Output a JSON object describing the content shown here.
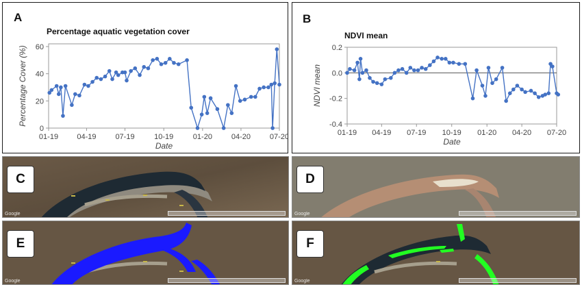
{
  "panels": {
    "a": {
      "label": "A",
      "title": "Percentage aquatic vegetation cover"
    },
    "b": {
      "label": "B",
      "title": "NDVI mean"
    },
    "c": {
      "label": "C"
    },
    "d": {
      "label": "D"
    },
    "e": {
      "label": "E"
    },
    "f": {
      "label": "F"
    }
  },
  "map_watermark": "Google",
  "colors": {
    "series": "#4472C4",
    "zero_line": "#555555",
    "water_mask": "#1a1aff",
    "veg_mask": "#22ff22"
  },
  "chart_data": [
    {
      "type": "line",
      "title": "Percentage aquatic vegetation cover",
      "xlabel": "Date",
      "ylabel": "Percentage Cover (%)",
      "x_ticks": [
        "01-19",
        "04-19",
        "07-19",
        "10-19",
        "01-20",
        "04-20",
        "07-20"
      ],
      "y_ticks": [
        "0",
        "20",
        "40",
        "60"
      ],
      "ylim": [
        0,
        62
      ],
      "grid": false,
      "series": [
        {
          "x": [
            "2019-01-03",
            "2019-01-08",
            "2019-01-20",
            "2019-01-25",
            "2019-01-30",
            "2019-02-04",
            "2019-02-10",
            "2019-02-25",
            "2019-03-05",
            "2019-03-15",
            "2019-03-27",
            "2019-04-05",
            "2019-04-15",
            "2019-04-25",
            "2019-05-05",
            "2019-05-15",
            "2019-05-25",
            "2019-06-01",
            "2019-06-10",
            "2019-06-15",
            "2019-06-25",
            "2019-07-01",
            "2019-07-05",
            "2019-07-15",
            "2019-07-25",
            "2019-08-05",
            "2019-08-15",
            "2019-08-25",
            "2019-09-05",
            "2019-09-15",
            "2019-09-25",
            "2019-10-05",
            "2019-10-15",
            "2019-10-25",
            "2019-11-05",
            "2019-11-25",
            "2019-12-05",
            "2019-12-20",
            "2019-12-30",
            "2020-01-05",
            "2020-01-12",
            "2020-01-20",
            "2020-02-05",
            "2020-02-20",
            "2020-03-01",
            "2020-03-10",
            "2020-03-20",
            "2020-03-30",
            "2020-04-10",
            "2020-04-25",
            "2020-05-05",
            "2020-05-15",
            "2020-05-25",
            "2020-06-05",
            "2020-06-12",
            "2020-06-15",
            "2020-06-20",
            "2020-06-25",
            "2020-07-01"
          ],
          "y": [
            26,
            28,
            31,
            25,
            30,
            9,
            31,
            17,
            25,
            24,
            32,
            31,
            34,
            37,
            36,
            38,
            42,
            36,
            41,
            39,
            41,
            41,
            35,
            42,
            44,
            39,
            45,
            44,
            50,
            51,
            47,
            48,
            51,
            48,
            47,
            50,
            15,
            0,
            10,
            23,
            11,
            22,
            14,
            0,
            17,
            11,
            31,
            20,
            21,
            23,
            23,
            29,
            30,
            30,
            32,
            0,
            33,
            58,
            32
          ]
        }
      ]
    },
    {
      "type": "line",
      "title": "NDVI mean",
      "xlabel": "Date",
      "ylabel": "NDVI mean",
      "x_ticks": [
        "01-19",
        "04-19",
        "07-19",
        "10-19",
        "01-20",
        "04-20",
        "07-20"
      ],
      "y_ticks": [
        "-0.4",
        "-0.2",
        "0.0",
        "0.2"
      ],
      "ylim": [
        -0.4,
        0.2
      ],
      "grid": false,
      "reference_line": 0,
      "series": [
        {
          "x": [
            "2019-01-01",
            "2019-01-08",
            "2019-01-20",
            "2019-01-28",
            "2019-02-02",
            "2019-02-05",
            "2019-02-10",
            "2019-02-20",
            "2019-03-01",
            "2019-03-10",
            "2019-03-20",
            "2019-04-01",
            "2019-04-10",
            "2019-04-25",
            "2019-05-05",
            "2019-05-15",
            "2019-05-25",
            "2019-06-05",
            "2019-06-15",
            "2019-06-25",
            "2019-07-05",
            "2019-07-15",
            "2019-07-25",
            "2019-08-05",
            "2019-08-15",
            "2019-08-25",
            "2019-09-05",
            "2019-09-15",
            "2019-09-25",
            "2019-10-05",
            "2019-10-20",
            "2019-11-05",
            "2019-11-25",
            "2019-12-05",
            "2019-12-20",
            "2019-12-28",
            "2020-01-05",
            "2020-01-15",
            "2020-01-25",
            "2020-02-10",
            "2020-02-20",
            "2020-03-01",
            "2020-03-10",
            "2020-03-20",
            "2020-04-01",
            "2020-04-10",
            "2020-04-25",
            "2020-05-05",
            "2020-05-15",
            "2020-05-25",
            "2020-06-01",
            "2020-06-10",
            "2020-06-15",
            "2020-06-20",
            "2020-07-01",
            "2020-07-05"
          ],
          "y": [
            0.0,
            0.03,
            0.02,
            0.08,
            -0.05,
            0.11,
            0.0,
            0.02,
            -0.04,
            -0.07,
            -0.08,
            -0.09,
            -0.05,
            -0.04,
            0.0,
            0.02,
            0.03,
            0.0,
            0.04,
            0.02,
            0.02,
            0.04,
            0.03,
            0.06,
            0.09,
            0.12,
            0.11,
            0.11,
            0.08,
            0.08,
            0.07,
            0.07,
            -0.2,
            0.02,
            -0.1,
            -0.18,
            0.04,
            -0.08,
            -0.05,
            0.04,
            -0.22,
            -0.16,
            -0.13,
            -0.1,
            -0.13,
            -0.15,
            -0.14,
            -0.16,
            -0.19,
            -0.18,
            -0.17,
            -0.16,
            0.07,
            0.05,
            -0.16,
            -0.17
          ]
        }
      ]
    }
  ]
}
